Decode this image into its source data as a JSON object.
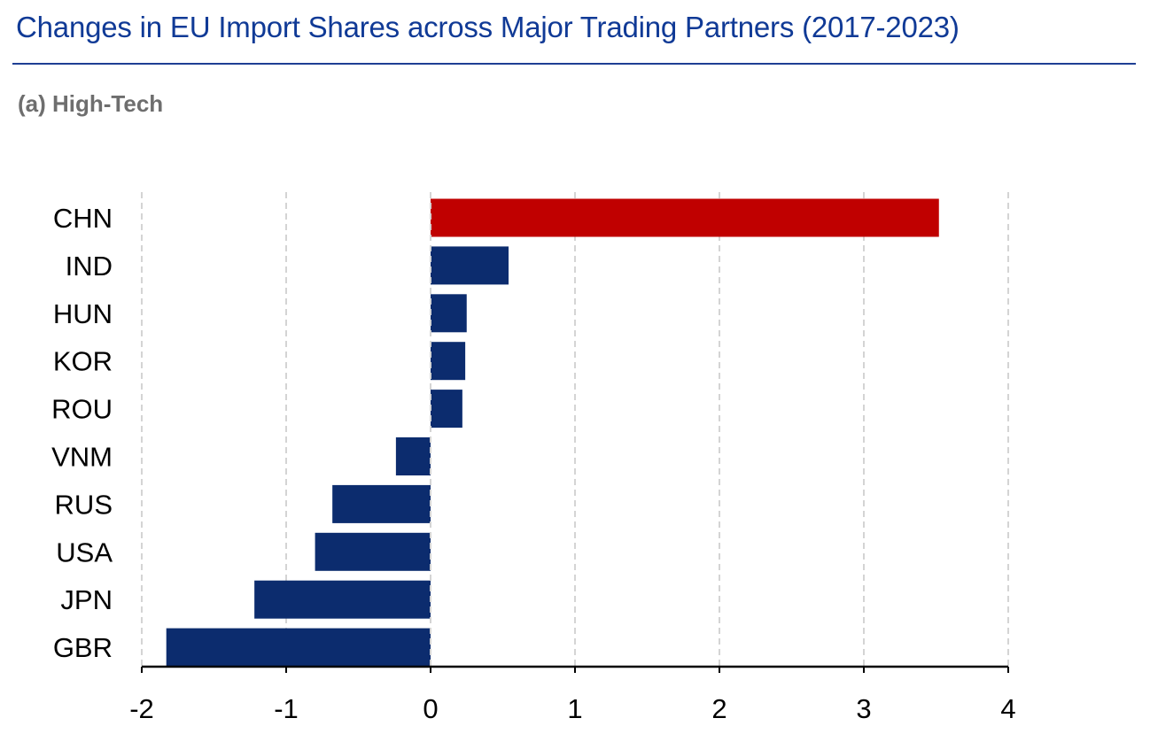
{
  "header": {
    "title": "Changes in EU Import Shares across Major Trading Partners (2017-2023)",
    "subtitle": "(a) High-Tech"
  },
  "chart_data": {
    "type": "bar",
    "orientation": "horizontal",
    "categories": [
      "CHN",
      "IND",
      "HUN",
      "KOR",
      "ROU",
      "VNM",
      "RUS",
      "USA",
      "JPN",
      "GBR"
    ],
    "values": [
      3.52,
      0.54,
      0.25,
      0.24,
      0.22,
      -0.24,
      -0.68,
      -0.8,
      -1.22,
      -1.83
    ],
    "highlight_category": "CHN",
    "colors": {
      "highlight": "#c00000",
      "default": "#0c2c6e",
      "grid": "#d4d4d4",
      "axis": "#000000"
    },
    "xlim": [
      -2,
      4
    ],
    "xticks": [
      -2,
      -1,
      0,
      1,
      2,
      3,
      4
    ],
    "xtick_labels": [
      "-2",
      "-1",
      "0",
      "1",
      "2",
      "3",
      "4"
    ],
    "grid": "vertical dashed",
    "legend": "none"
  }
}
